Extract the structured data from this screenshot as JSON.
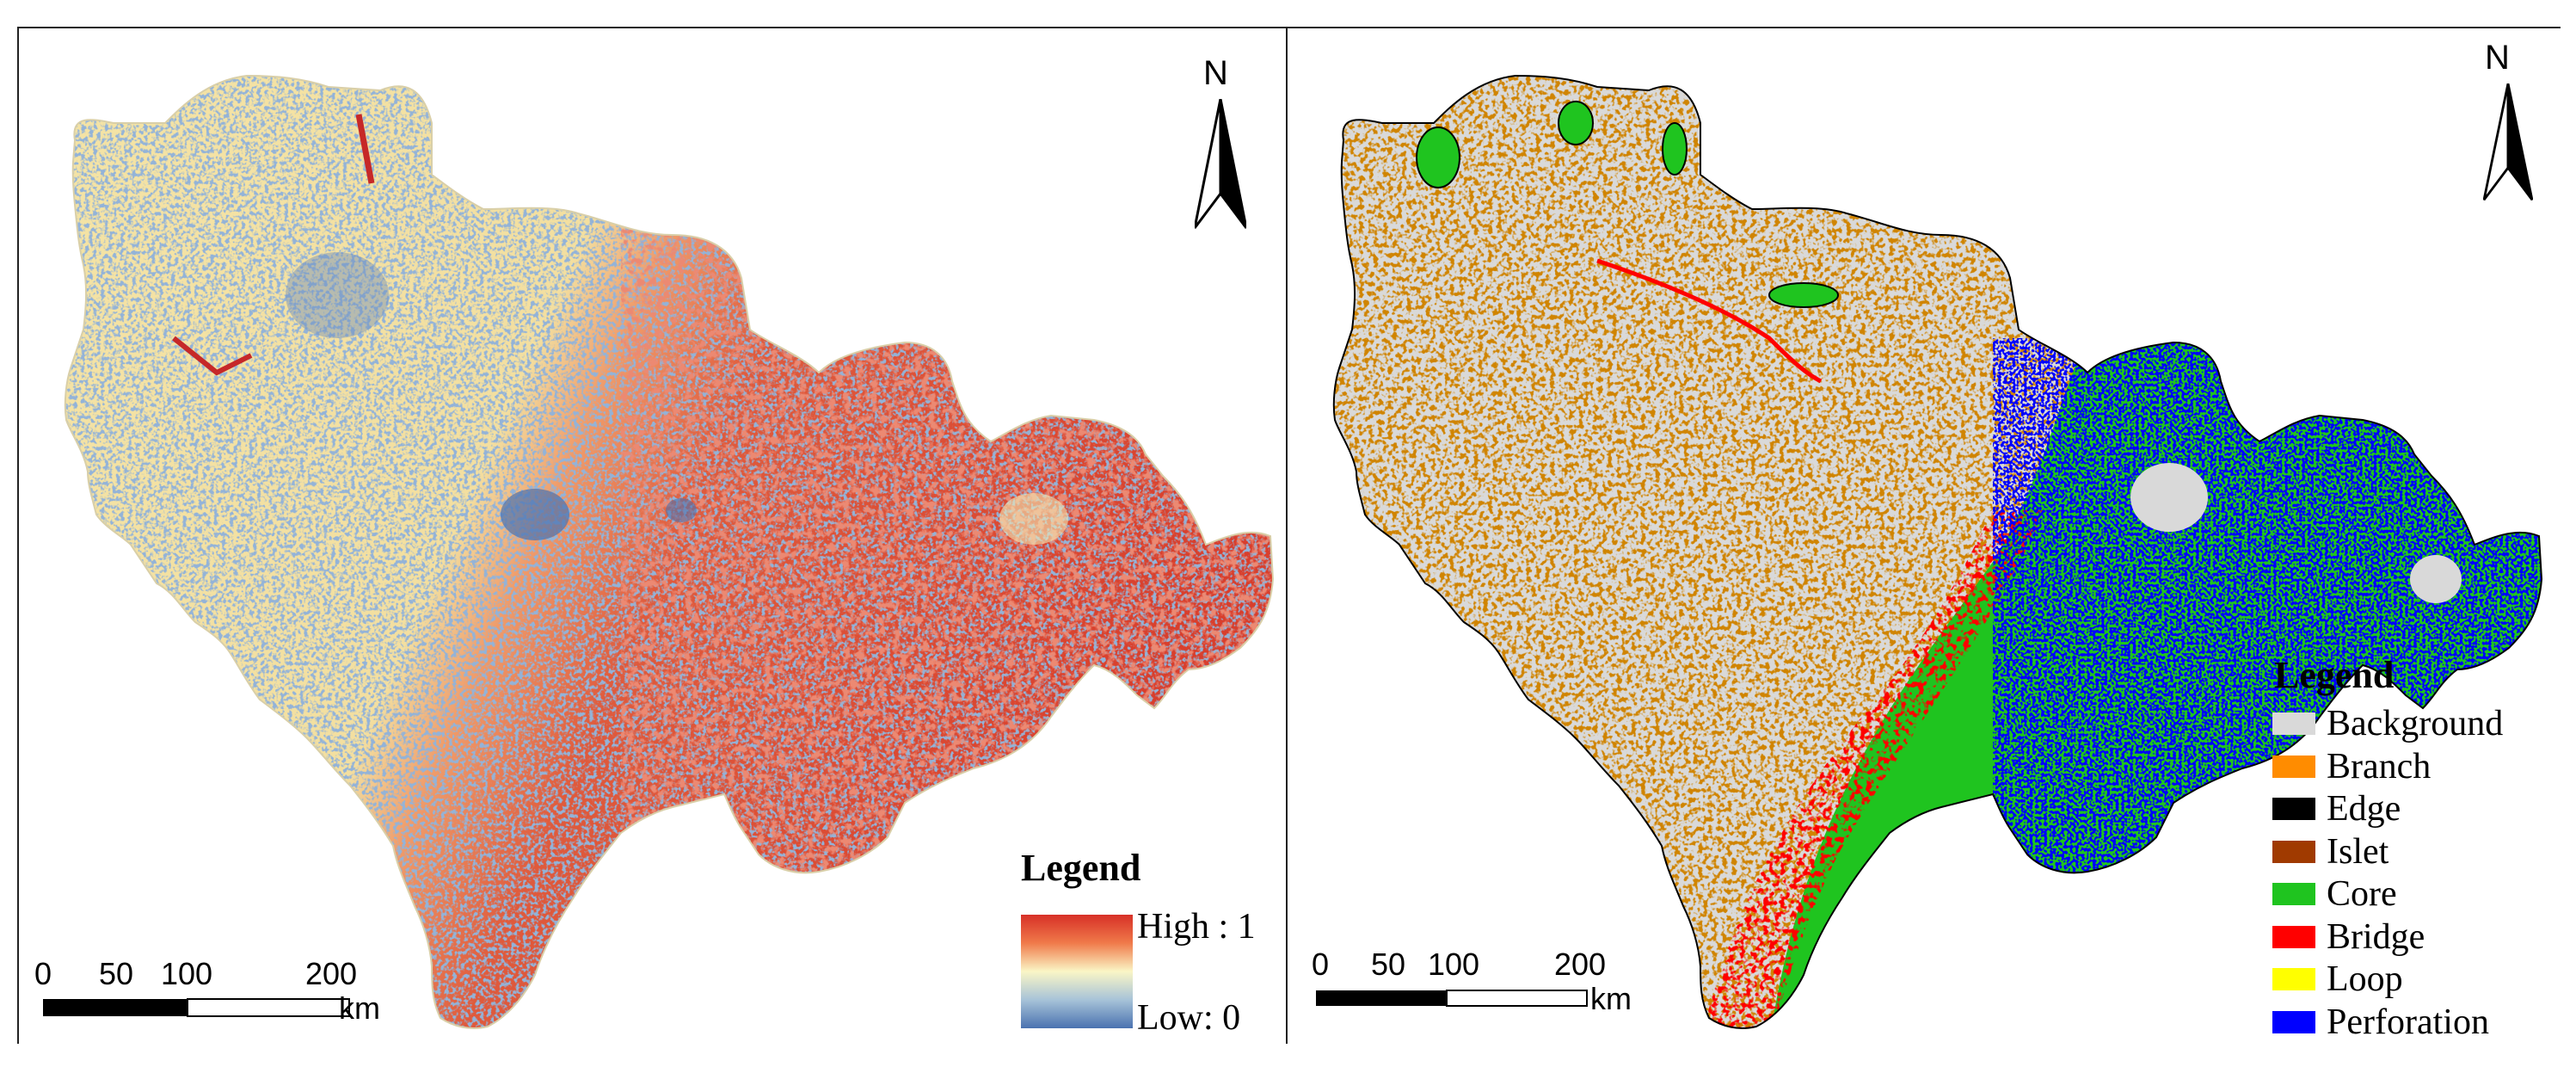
{
  "panels": [
    {
      "north_label": "N",
      "scale": {
        "ticks": [
          "0",
          "50",
          "100",
          "200"
        ],
        "unit": "km"
      },
      "legend": {
        "title": "Legend",
        "high_label": "High : 1",
        "low_label": "Low: 0"
      },
      "colors": {
        "high": "#d73027",
        "mid": "#faf6c6",
        "low": "#4a72b0"
      }
    },
    {
      "north_label": "N",
      "scale": {
        "ticks": [
          "0",
          "50",
          "100",
          "200"
        ],
        "unit": "km"
      },
      "legend": {
        "title": "Legend",
        "items": [
          {
            "label": "Background",
            "color": "#d9d9d9"
          },
          {
            "label": "Branch",
            "color": "#ff8c00"
          },
          {
            "label": "Edge",
            "color": "#000000"
          },
          {
            "label": "Islet",
            "color": "#a03a00"
          },
          {
            "label": "Core",
            "color": "#1fc41f"
          },
          {
            "label": "Bridge",
            "color": "#ff0000"
          },
          {
            "label": "Loop",
            "color": "#ffff00"
          },
          {
            "label": "Perforation",
            "color": "#0000ff"
          }
        ]
      }
    }
  ]
}
